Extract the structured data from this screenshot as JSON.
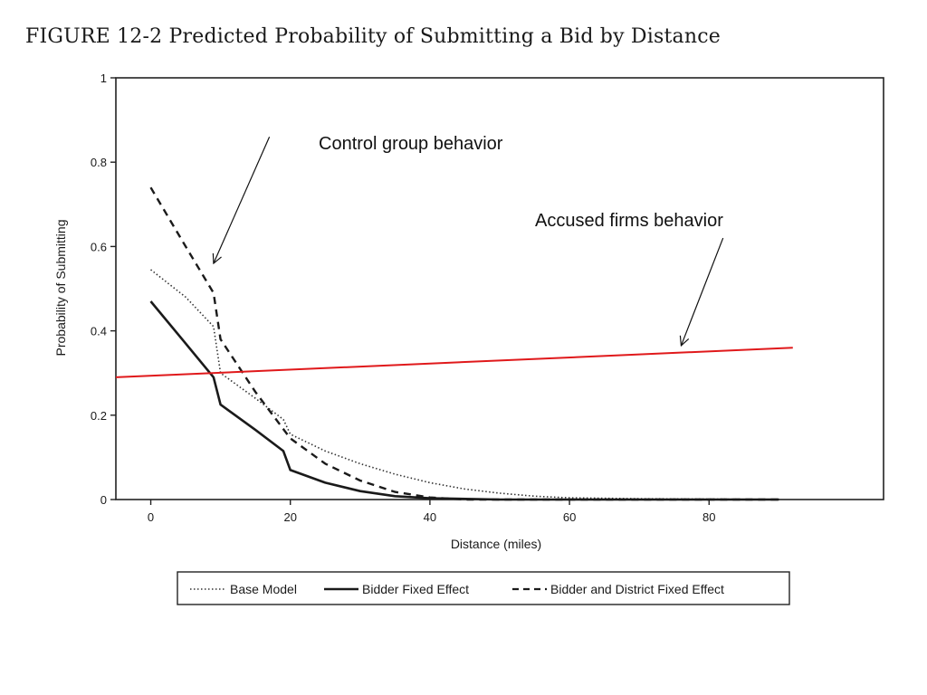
{
  "figure": {
    "title": "FIGURE 12-2  Predicted Probability of Submitting a Bid by Distance"
  },
  "chart_data": {
    "type": "line",
    "xlabel": "Distance (miles)",
    "ylabel": "Probability of Submitting",
    "xlim": [
      -5,
      105
    ],
    "ylim": [
      0,
      1
    ],
    "x_ticks": [
      0,
      20,
      40,
      60,
      80
    ],
    "y_ticks": [
      0,
      0.2,
      0.4,
      0.6,
      0.8,
      1
    ],
    "y_tick_labels": [
      "0",
      "0.2",
      "0.4",
      "0.6",
      "0.8",
      "1"
    ],
    "grid": false,
    "legend_position": "bottom",
    "series": [
      {
        "name": "Base Model",
        "style": "dotted",
        "color": "#333333",
        "points": [
          [
            0,
            0.545
          ],
          [
            5,
            0.48
          ],
          [
            9,
            0.41
          ],
          [
            10,
            0.3
          ],
          [
            15,
            0.24
          ],
          [
            19,
            0.19
          ],
          [
            20,
            0.155
          ],
          [
            25,
            0.115
          ],
          [
            30,
            0.085
          ],
          [
            35,
            0.06
          ],
          [
            40,
            0.04
          ],
          [
            45,
            0.025
          ],
          [
            50,
            0.015
          ],
          [
            55,
            0.008
          ],
          [
            60,
            0.004
          ],
          [
            70,
            0.002
          ],
          [
            80,
            0.001
          ],
          [
            90,
            0.0
          ]
        ]
      },
      {
        "name": "Bidder Fixed Effect",
        "style": "solid",
        "color": "#1a1a1a",
        "points": [
          [
            0,
            0.47
          ],
          [
            5,
            0.37
          ],
          [
            9,
            0.29
          ],
          [
            10,
            0.225
          ],
          [
            15,
            0.165
          ],
          [
            19,
            0.115
          ],
          [
            20,
            0.07
          ],
          [
            25,
            0.04
          ],
          [
            30,
            0.02
          ],
          [
            35,
            0.008
          ],
          [
            40,
            0.003
          ],
          [
            50,
            0.0
          ],
          [
            90,
            0.0
          ]
        ]
      },
      {
        "name": "Bidder and District Fixed Effect",
        "style": "dashed",
        "color": "#1a1a1a",
        "points": [
          [
            0,
            0.74
          ],
          [
            5,
            0.6
          ],
          [
            9,
            0.49
          ],
          [
            10,
            0.38
          ],
          [
            15,
            0.255
          ],
          [
            20,
            0.145
          ],
          [
            25,
            0.085
          ],
          [
            30,
            0.045
          ],
          [
            35,
            0.018
          ],
          [
            40,
            0.005
          ],
          [
            45,
            0.0
          ],
          [
            90,
            0.0
          ]
        ]
      }
    ],
    "overlay_line": {
      "label": "Accused firms behavior",
      "color": "#e0191b",
      "points": [
        [
          -5,
          0.29
        ],
        [
          92,
          0.36
        ]
      ]
    },
    "annotations": [
      {
        "text": "Control group behavior",
        "arrow_from": [
          17,
          0.86
        ],
        "arrow_to": [
          9,
          0.56
        ]
      },
      {
        "text": "Accused firms behavior",
        "arrow_from": [
          82,
          0.62
        ],
        "arrow_to": [
          76,
          0.365
        ]
      }
    ]
  }
}
